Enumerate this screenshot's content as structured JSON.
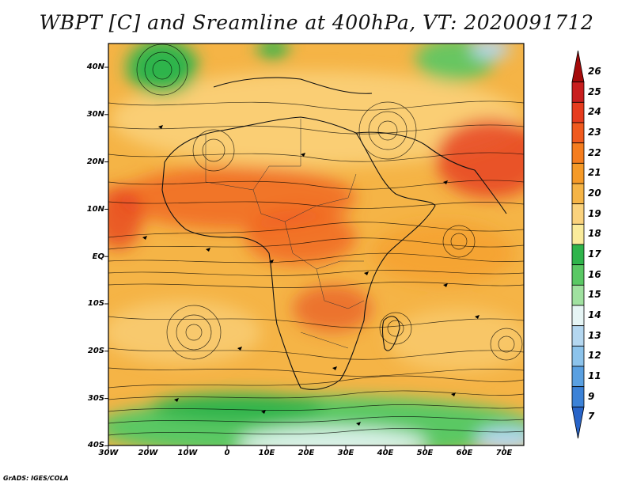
{
  "title": "WBPT [C] and Sreamline at 400hPa, VT: 2020091712",
  "credit": "GrADS: IGES/COLA",
  "axes": {
    "lat_labels": [
      "40N",
      "30N",
      "20N",
      "10N",
      "EQ",
      "10S",
      "20S",
      "30S",
      "40S"
    ],
    "lon_labels": [
      "30W",
      "20W",
      "10W",
      "0",
      "10E",
      "20E",
      "30E",
      "40E",
      "50E",
      "60E",
      "70E"
    ]
  },
  "colorbar": {
    "labels": [
      "26",
      "25",
      "24",
      "23",
      "22",
      "21",
      "20",
      "19",
      "18",
      "17",
      "16",
      "15",
      "14",
      "13",
      "12",
      "11",
      "9",
      "7"
    ],
    "colors": [
      "#a50a0a",
      "#c81e1e",
      "#e63c1e",
      "#f05a1e",
      "#f57d1e",
      "#f59a28",
      "#f5b446",
      "#fad27d",
      "#faeb9b",
      "#2fb44b",
      "#5ac864",
      "#a0e1a0",
      "#e6f5f5",
      "#b4d7f0",
      "#8cc3eb",
      "#5aa0e1",
      "#3c82d7",
      "#2864c8"
    ]
  },
  "map": {
    "variable": "wet-bulb potential temperature",
    "level": "400hPa",
    "lon_range": [
      -30,
      75
    ],
    "lat_range": [
      -40,
      45
    ]
  }
}
